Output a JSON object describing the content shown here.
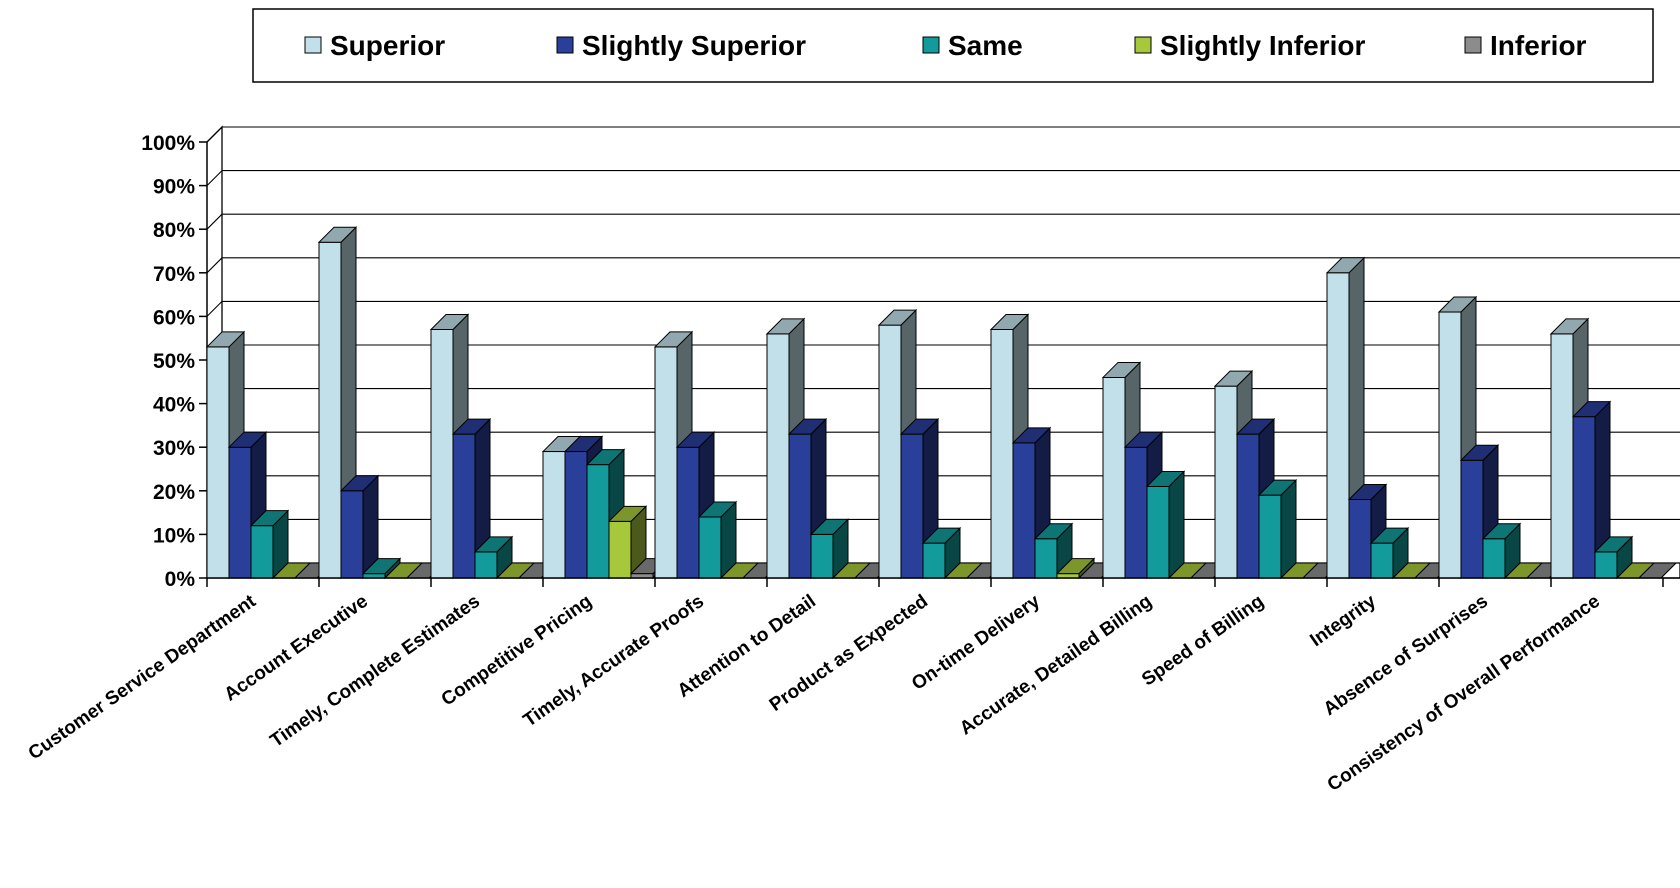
{
  "chart_data": {
    "type": "bar",
    "three_d": true,
    "categories": [
      "Customer Service Department",
      "Account Executive",
      "Timely, Complete Estimates",
      "Competitive Pricing",
      "Timely, Accurate Proofs",
      "Attention to Detail",
      "Product as Expected",
      "On-time Delivery",
      "Accurate, Detailed Billing",
      "Speed of Billing",
      "Integrity",
      "Absence of Surprises",
      "Consistency of Overall Performance"
    ],
    "series": [
      {
        "name": "Superior",
        "color": "#c2e0e9",
        "values": [
          53,
          77,
          57,
          29,
          53,
          56,
          58,
          57,
          46,
          44,
          70,
          61,
          56
        ]
      },
      {
        "name": "Slightly Superior",
        "color": "#2a3f9a",
        "values": [
          30,
          20,
          33,
          29,
          30,
          33,
          33,
          31,
          30,
          33,
          18,
          27,
          37
        ]
      },
      {
        "name": "Same",
        "color": "#139b9b",
        "values": [
          12,
          1,
          6,
          26,
          14,
          10,
          8,
          9,
          21,
          19,
          8,
          9,
          6
        ]
      },
      {
        "name": "Slightly Inferior",
        "color": "#a7c83a",
        "values": [
          0,
          0,
          0,
          13,
          0,
          0,
          0,
          1,
          0,
          0,
          0,
          0,
          0
        ]
      },
      {
        "name": "Inferior",
        "color": "#8c8c8c",
        "values": [
          0,
          0,
          0,
          1,
          0,
          0,
          0,
          0,
          0,
          0,
          0,
          0,
          0
        ]
      }
    ],
    "ylim": [
      0,
      100
    ],
    "yticks": [
      "0%",
      "10%",
      "20%",
      "30%",
      "40%",
      "50%",
      "60%",
      "70%",
      "80%",
      "90%",
      "100%"
    ],
    "grid": true,
    "legend_position": "top"
  }
}
